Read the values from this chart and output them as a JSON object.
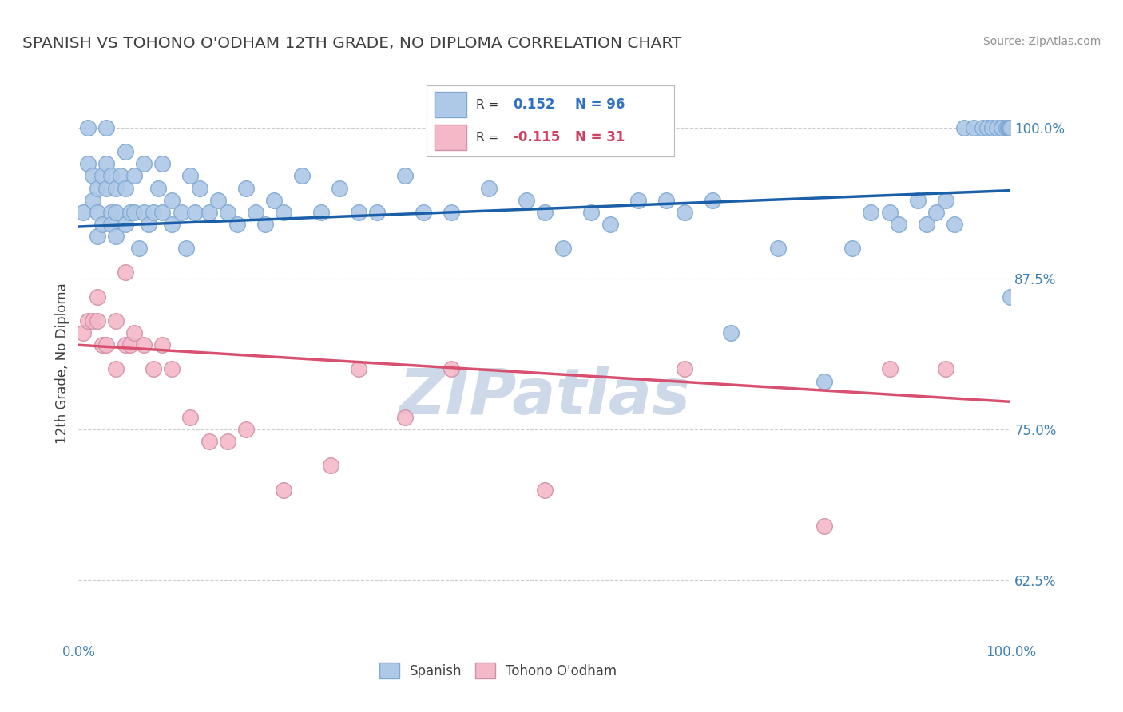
{
  "title": "SPANISH VS TOHONO O'ODHAM 12TH GRADE, NO DIPLOMA CORRELATION CHART",
  "source": "Source: ZipAtlas.com",
  "ylabel": "12th Grade, No Diploma",
  "xlim": [
    0.0,
    1.0
  ],
  "ylim": [
    0.575,
    1.035
  ],
  "yticks": [
    0.625,
    0.75,
    0.875,
    1.0
  ],
  "ytick_labels": [
    "62.5%",
    "75.0%",
    "87.5%",
    "100.0%"
  ],
  "xtick_labels": [
    "0.0%",
    "100.0%"
  ],
  "xticks": [
    0.0,
    1.0
  ],
  "legend_labels": [
    "Spanish",
    "Tohono O'odham"
  ],
  "blue_R": 0.152,
  "blue_N": 96,
  "pink_R": -0.115,
  "pink_N": 31,
  "blue_color": "#aec8e8",
  "pink_color": "#f5b8c8",
  "blue_line_color": "#1a5fa8",
  "pink_line_color": "#d85070",
  "background_color": "#ffffff",
  "grid_color": "#cccccc",
  "title_color": "#404040",
  "watermark_color": "#cdd8e8",
  "blue_x": [
    0.005,
    0.01,
    0.01,
    0.015,
    0.015,
    0.02,
    0.02,
    0.02,
    0.025,
    0.025,
    0.03,
    0.03,
    0.03,
    0.035,
    0.035,
    0.035,
    0.04,
    0.04,
    0.04,
    0.045,
    0.05,
    0.05,
    0.05,
    0.055,
    0.06,
    0.06,
    0.065,
    0.07,
    0.07,
    0.075,
    0.08,
    0.085,
    0.09,
    0.09,
    0.1,
    0.1,
    0.11,
    0.115,
    0.12,
    0.125,
    0.13,
    0.14,
    0.15,
    0.16,
    0.17,
    0.18,
    0.19,
    0.2,
    0.21,
    0.22,
    0.24,
    0.26,
    0.28,
    0.3,
    0.32,
    0.35,
    0.37,
    0.4,
    0.44,
    0.48,
    0.5,
    0.52,
    0.55,
    0.57,
    0.6,
    0.63,
    0.65,
    0.68,
    0.7,
    0.75,
    0.8,
    0.83,
    0.85,
    0.87,
    0.88,
    0.9,
    0.91,
    0.92,
    0.93,
    0.94,
    0.95,
    0.96,
    0.97,
    0.975,
    0.98,
    0.985,
    0.99,
    0.99,
    0.995,
    0.997,
    0.998,
    0.999,
    1.0,
    1.0,
    1.0
  ],
  "blue_y": [
    0.93,
    1.0,
    0.97,
    0.96,
    0.94,
    0.95,
    0.93,
    0.91,
    0.96,
    0.92,
    1.0,
    0.97,
    0.95,
    0.93,
    0.96,
    0.92,
    0.95,
    0.93,
    0.91,
    0.96,
    0.98,
    0.95,
    0.92,
    0.93,
    0.96,
    0.93,
    0.9,
    0.97,
    0.93,
    0.92,
    0.93,
    0.95,
    0.97,
    0.93,
    0.92,
    0.94,
    0.93,
    0.9,
    0.96,
    0.93,
    0.95,
    0.93,
    0.94,
    0.93,
    0.92,
    0.95,
    0.93,
    0.92,
    0.94,
    0.93,
    0.96,
    0.93,
    0.95,
    0.93,
    0.93,
    0.96,
    0.93,
    0.93,
    0.95,
    0.94,
    0.93,
    0.9,
    0.93,
    0.92,
    0.94,
    0.94,
    0.93,
    0.94,
    0.83,
    0.9,
    0.79,
    0.9,
    0.93,
    0.93,
    0.92,
    0.94,
    0.92,
    0.93,
    0.94,
    0.92,
    1.0,
    1.0,
    1.0,
    1.0,
    1.0,
    1.0,
    1.0,
    1.0,
    1.0,
    1.0,
    1.0,
    1.0,
    1.0,
    1.0,
    0.86
  ],
  "pink_x": [
    0.005,
    0.01,
    0.015,
    0.02,
    0.02,
    0.025,
    0.03,
    0.04,
    0.04,
    0.05,
    0.05,
    0.055,
    0.06,
    0.07,
    0.08,
    0.09,
    0.1,
    0.12,
    0.14,
    0.16,
    0.18,
    0.22,
    0.27,
    0.3,
    0.35,
    0.4,
    0.5,
    0.65,
    0.8,
    0.87,
    0.93
  ],
  "pink_y": [
    0.83,
    0.84,
    0.84,
    0.86,
    0.84,
    0.82,
    0.82,
    0.84,
    0.8,
    0.82,
    0.88,
    0.82,
    0.83,
    0.82,
    0.8,
    0.82,
    0.8,
    0.76,
    0.74,
    0.74,
    0.75,
    0.7,
    0.72,
    0.8,
    0.76,
    0.8,
    0.7,
    0.8,
    0.67,
    0.8,
    0.8
  ],
  "blue_line_x": [
    0.0,
    1.0
  ],
  "blue_line_y_start": 0.918,
  "blue_line_y_end": 0.948,
  "pink_line_x": [
    0.0,
    1.0
  ],
  "pink_line_y_start": 0.82,
  "pink_line_y_end": 0.773
}
